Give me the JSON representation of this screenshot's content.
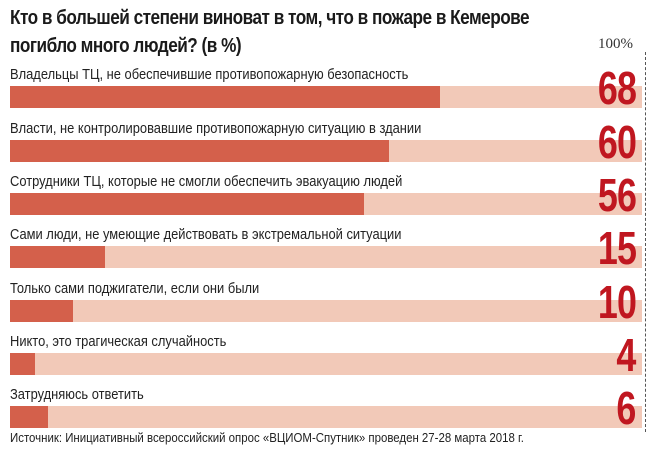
{
  "chart_data": {
    "type": "bar",
    "orientation": "horizontal",
    "title": "Кто в большей степени виноват в том, что в пожаре в Кемерове погибло много людей? (в %)",
    "xlabel": "",
    "ylabel": "",
    "xlim": [
      0,
      100
    ],
    "scale_label": "100%",
    "grid": false,
    "legend": null,
    "categories": [
      "Владельцы ТЦ, не обеспечившие противопожарную безопасность",
      "Власти, не контролировавшие противопожарную ситуацию в здании",
      "Сотрудники ТЦ, которые не смогли обеспечить эвакуацию людей",
      "Сами люди, не умеющие действовать в экстремальной ситуации",
      "Только сами поджигатели, если они были",
      "Никто, это трагическая случайность",
      "Затрудняюсь ответить"
    ],
    "values": [
      68,
      60,
      56,
      15,
      10,
      4,
      6
    ],
    "colors": {
      "fill": "#d4604b",
      "track": "#f2c9b8",
      "value_text": "#c01720"
    },
    "source": "Источник: Инициативный всероссийский опрос «ВЦИОМ-Спутник» проведен 27-28 марта 2018 г."
  },
  "title_line1": "Кто в большей степени виноват в том, что в пожаре в Кемерове",
  "title_line2": "погибло много людей? (в %)",
  "scale_label": "100%",
  "rows": [
    {
      "label": "Владельцы ТЦ, не обеспечившие противопожарную безопасность",
      "value": "68",
      "pct": 68
    },
    {
      "label": "Власти, не контролировавшие противопожарную ситуацию в здании",
      "value": "60",
      "pct": 60
    },
    {
      "label": "Сотрудники ТЦ, которые не смогли обеспечить эвакуацию людей",
      "value": "56",
      "pct": 56
    },
    {
      "label": "Сами люди, не умеющие действовать в экстремальной ситуации",
      "value": "15",
      "pct": 15
    },
    {
      "label": "Только сами поджигатели, если они были",
      "value": "10",
      "pct": 10
    },
    {
      "label": "Никто, это трагическая случайность",
      "value": "4",
      "pct": 4
    },
    {
      "label": "Затрудняюсь ответить",
      "value": "6",
      "pct": 6
    }
  ],
  "source": "Источник: Инициативный всероссийский опрос «ВЦИОМ-Спутник» проведен 27-28 марта 2018 г."
}
